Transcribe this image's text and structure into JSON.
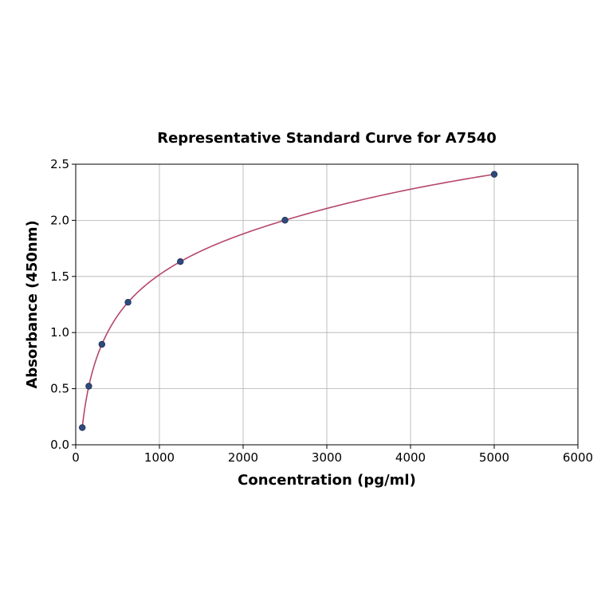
{
  "chart_data": {
    "type": "scatter",
    "title": "Representative Standard Curve for A7540",
    "xlabel": "Concentration (pg/ml)",
    "ylabel": "Absorbance (450nm)",
    "xlim": [
      0,
      6000
    ],
    "ylim": [
      0,
      2.5
    ],
    "xticks": [
      "0",
      "1000",
      "2000",
      "3000",
      "4000",
      "5000",
      "6000"
    ],
    "yticks": [
      "0.0",
      "0.5",
      "1.0",
      "1.5",
      "2.0",
      "2.5"
    ],
    "grid": true,
    "points": {
      "x": [
        78.125,
        156.25,
        312.5,
        625,
        1250,
        2500,
        5000
      ],
      "y": [
        0.153,
        0.522,
        0.895,
        1.27,
        1.632,
        2.001,
        2.41
      ]
    },
    "fit_curve": true,
    "colors": {
      "point": "#2f4b7c",
      "curve": "#b5466b",
      "grid": "#b0b0b0"
    }
  }
}
